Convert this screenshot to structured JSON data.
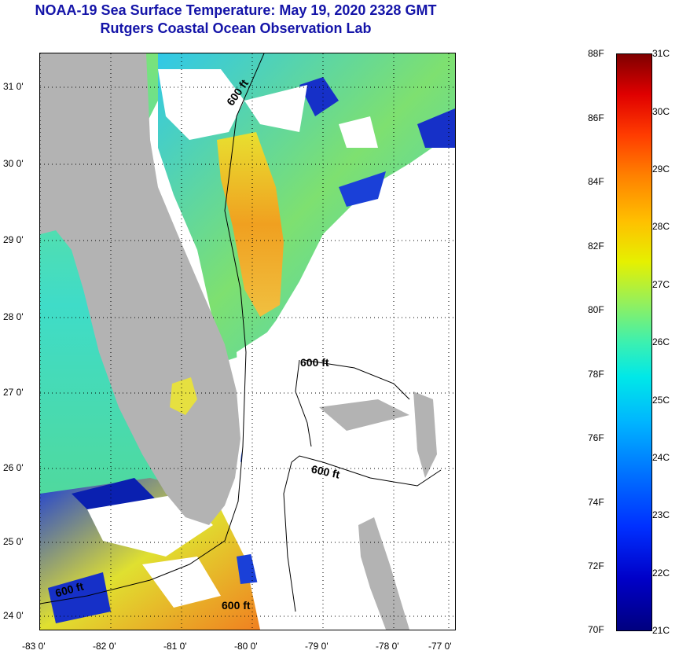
{
  "title": {
    "line1": "NOAA-19 Sea Surface Temperature:  May 19, 2020 2328 GMT",
    "line2": "Rutgers Coastal Ocean Observation Lab"
  },
  "map": {
    "lat_labels": [
      "31 0'",
      "30 0'",
      "29 0'",
      "28 0'",
      "27 0'",
      "26 0'",
      "25 0'",
      "24 0'"
    ],
    "lon_labels": [
      "-83 0'",
      "-82 0'",
      "-81 0'",
      "-80 0'",
      "-79 0'",
      "-78 0'",
      "-77 0'"
    ],
    "contour_labels": [
      "600 ft",
      "600 ft",
      "600 ft",
      "600 ft",
      "600 ft"
    ],
    "land_color": "#b3b3b3",
    "cloud_color": "#ffffff"
  },
  "colorbar": {
    "fahrenheit": [
      "88F",
      "86F",
      "84F",
      "82F",
      "80F",
      "78F",
      "76F",
      "74F",
      "72F",
      "70F"
    ],
    "celsius": [
      "31C",
      "30C",
      "29C",
      "28C",
      "27C",
      "26C",
      "25C",
      "24C",
      "23C",
      "22C",
      "21C"
    ]
  }
}
